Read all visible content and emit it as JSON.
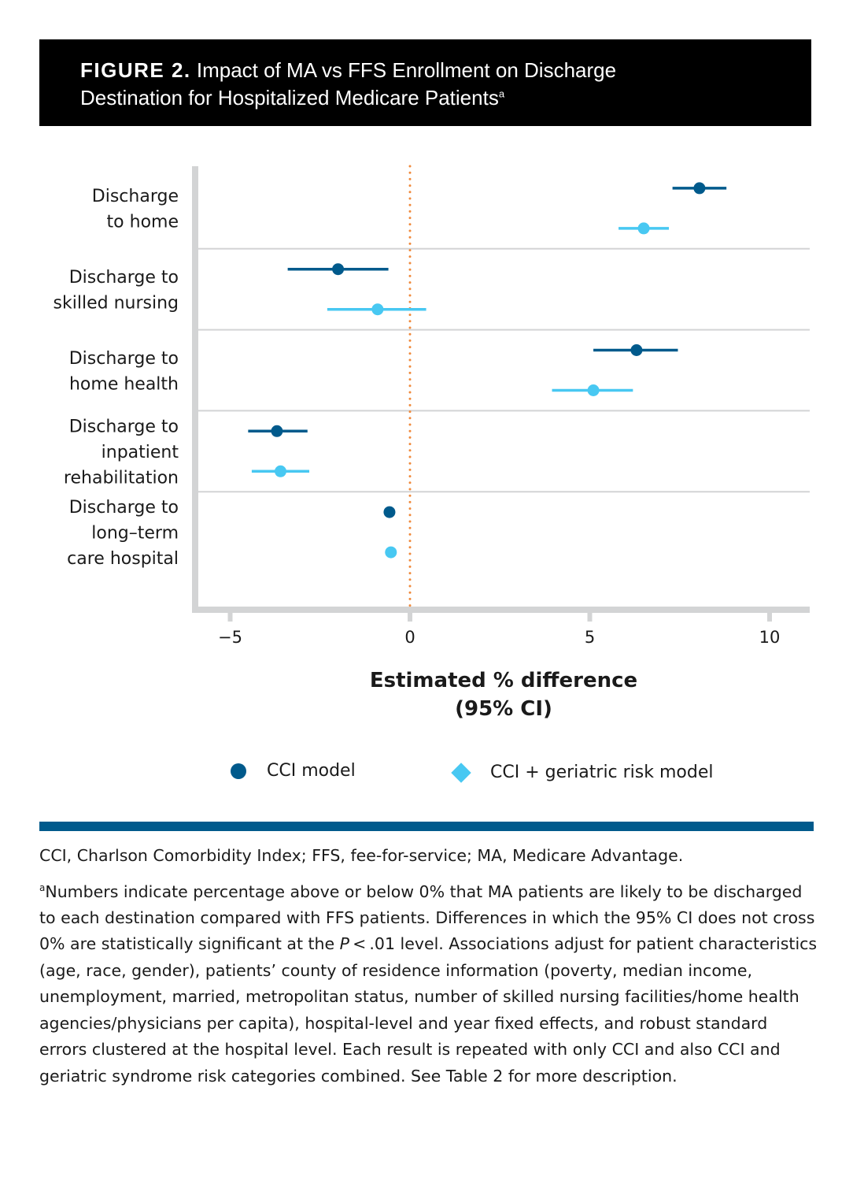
{
  "header": {
    "figure_label": "FIGURE 2.",
    "title_line1": "Impact of MA vs FFS Enrollment on Discharge",
    "title_line2": "Destination for Hospitalized Medicare Patients",
    "title_footnote_mark": "a"
  },
  "colors": {
    "cci_model": "#005a8c",
    "cci_geriatric_model": "#48c8f2",
    "reference_line": "#f08a3c",
    "axis": "#d3d4d5",
    "gridline": "#d3d4d5",
    "rule": "#005a8c"
  },
  "chart_data": {
    "type": "scatter",
    "subtype": "forest-plot",
    "title": "Impact of MA vs FFS Enrollment on Discharge Destination for Hospitalized Medicare Patients",
    "xlabel": "Estimated % difference (95% CI)",
    "xlabel_lines": [
      "Estimated % difference",
      "(95% CI)"
    ],
    "ylabel": "",
    "xlim": [
      -6.0,
      11.1
    ],
    "xticks": [
      -5,
      0,
      5,
      10
    ],
    "xtick_labels": [
      "−5",
      "0",
      "5",
      "10"
    ],
    "reference_line": 0,
    "grid": "horizontal separators between categories",
    "legend_position": "bottom",
    "categories": [
      [
        "Discharge",
        "to home"
      ],
      [
        "Discharge to",
        "skilled nursing"
      ],
      [
        "Discharge to",
        "home health"
      ],
      [
        "Discharge to",
        "inpatient",
        "rehabilitation"
      ],
      [
        "Discharge to",
        "long-term",
        "care hospital"
      ]
    ],
    "series": [
      {
        "name": "CCI model",
        "marker": "circle",
        "estimates": [
          8.05,
          -2.0,
          6.3,
          -3.7,
          -0.57
        ],
        "ci_low": [
          7.3,
          -3.4,
          5.1,
          -4.5,
          null
        ],
        "ci_high": [
          8.8,
          -0.6,
          7.45,
          -2.85,
          null
        ]
      },
      {
        "name": "CCI + geriatric risk model",
        "marker": "diamond",
        "estimates": [
          6.5,
          -0.9,
          5.1,
          -3.6,
          -0.53
        ],
        "ci_low": [
          5.8,
          -2.3,
          3.95,
          -4.4,
          null
        ],
        "ci_high": [
          7.2,
          0.45,
          6.2,
          -2.8,
          null
        ]
      }
    ]
  },
  "legend": {
    "items": [
      {
        "label": "CCI model"
      },
      {
        "label": "CCI + geriatric risk model"
      }
    ]
  },
  "notes": {
    "abbreviations": "CCI, Charlson Comorbidity Index; FFS, fee-for-service; MA, Medicare Advantage.",
    "footnote_mark": "a",
    "footnote_part1": "Numbers indicate percentage above or below 0% that MA patients are likely to be discharged to each destination compared with FFS patients. Differences in which the 95% CI does not cross 0% are statistically significant at the ",
    "footnote_p": "P",
    "footnote_part2": " < .01 level. Associations adjust for patient characteristics (age, race, gender), patients’ county of residence information (poverty, median income, unemployment, married, metropolitan status, number of skilled nursing facilities/home health agencies/physicians per capita), hospital-level and year fixed effects, and robust standard errors clustered at the hospital level. Each result is repeated with only CCI and also CCI and geriatric syndrome risk categories combined. See Table 2 for more description."
  }
}
